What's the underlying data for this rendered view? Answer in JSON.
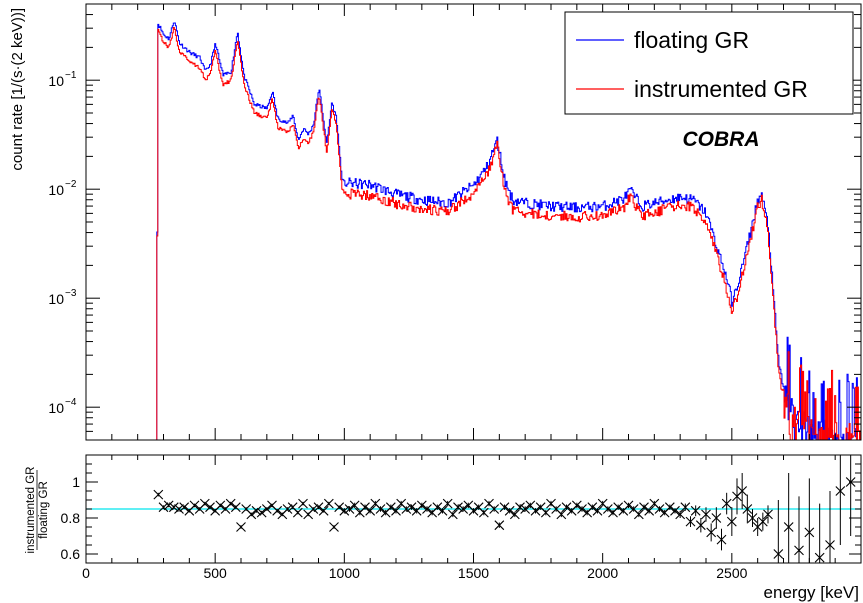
{
  "chart_data": [
    {
      "type": "line",
      "ylabel": "count rate [1/(s·(2 keV))]",
      "yscale": "log",
      "xlim": [
        0,
        3000
      ],
      "ylim": [
        5e-05,
        0.5
      ],
      "y_ticks": [
        {
          "value": 0.1,
          "base": "10",
          "exp": "−1"
        },
        {
          "value": 0.01,
          "base": "10",
          "exp": "−2"
        },
        {
          "value": 0.001,
          "base": "10",
          "exp": "−3"
        },
        {
          "value": 0.0001,
          "base": "10",
          "exp": "−4"
        }
      ],
      "legend": {
        "placement": "top-right"
      },
      "annotation": "COBRA",
      "x": [
        270,
        278,
        300,
        320,
        340,
        360,
        400,
        440,
        460,
        480,
        500,
        515,
        530,
        560,
        585,
        610,
        650,
        700,
        720,
        740,
        780,
        800,
        820,
        840,
        860,
        880,
        900,
        912,
        930,
        950,
        968,
        990,
        1000,
        1100,
        1200,
        1300,
        1400,
        1500,
        1550,
        1590,
        1620,
        1650,
        1700,
        1800,
        1900,
        2000,
        2080,
        2105,
        2150,
        2200,
        2300,
        2350,
        2400,
        2450,
        2480,
        2500,
        2530,
        2570,
        2600,
        2614,
        2640,
        2660,
        2680,
        2700,
        2720,
        2750,
        2800,
        2900,
        3000
      ],
      "series": [
        {
          "name": "floating GR",
          "color": "#0000ff",
          "values": [
            5e-05,
            0.33,
            0.26,
            0.24,
            0.36,
            0.22,
            0.18,
            0.16,
            0.12,
            0.14,
            0.22,
            0.15,
            0.11,
            0.12,
            0.28,
            0.11,
            0.06,
            0.055,
            0.08,
            0.045,
            0.04,
            0.048,
            0.028,
            0.036,
            0.032,
            0.04,
            0.085,
            0.055,
            0.026,
            0.062,
            0.045,
            0.012,
            0.0115,
            0.011,
            0.009,
            0.008,
            0.0075,
            0.011,
            0.016,
            0.028,
            0.012,
            0.008,
            0.0075,
            0.007,
            0.0068,
            0.007,
            0.0082,
            0.0098,
            0.007,
            0.0075,
            0.0085,
            0.008,
            0.006,
            0.0025,
            0.0015,
            0.0009,
            0.0016,
            0.004,
            0.0082,
            0.0088,
            0.0045,
            0.001,
            0.00025,
            0.00015,
            0.0001,
            7e-05,
            6e-05,
            5e-05,
            5e-05
          ]
        },
        {
          "name": "instrumented GR",
          "color": "#ff0000",
          "values": [
            5e-05,
            0.29,
            0.22,
            0.2,
            0.31,
            0.18,
            0.15,
            0.13,
            0.1,
            0.115,
            0.19,
            0.12,
            0.09,
            0.1,
            0.24,
            0.09,
            0.05,
            0.045,
            0.068,
            0.037,
            0.033,
            0.04,
            0.023,
            0.03,
            0.027,
            0.034,
            0.075,
            0.046,
            0.022,
            0.055,
            0.038,
            0.0098,
            0.0092,
            0.0088,
            0.0074,
            0.0066,
            0.0062,
            0.0092,
            0.0135,
            0.025,
            0.0095,
            0.0066,
            0.006,
            0.0057,
            0.0056,
            0.0058,
            0.0068,
            0.0085,
            0.0058,
            0.0062,
            0.0072,
            0.0068,
            0.005,
            0.0021,
            0.0012,
            0.00075,
            0.0013,
            0.0034,
            0.0072,
            0.008,
            0.0038,
            0.0009,
            0.0002,
            0.00013,
            9e-05,
            7e-05,
            6e-05,
            5e-05,
            5e-05
          ]
        }
      ]
    },
    {
      "type": "scatter",
      "xlabel": "energy [keV]",
      "ylabel_numerator": "instrumented GR",
      "ylabel_denominator": "floating GR",
      "xlim": [
        0,
        3000
      ],
      "ylim": [
        0.55,
        1.15
      ],
      "x_ticks": [
        0,
        500,
        1000,
        1500,
        2000,
        2500
      ],
      "y_ticks": [
        0.6,
        0.8,
        1
      ],
      "reference_line": {
        "value": 0.85,
        "color": "#00e5ee"
      },
      "points": {
        "x": [
          280,
          300,
          320,
          340,
          360,
          380,
          400,
          420,
          440,
          460,
          480,
          500,
          520,
          540,
          560,
          580,
          600,
          620,
          640,
          660,
          680,
          700,
          720,
          740,
          760,
          780,
          800,
          820,
          840,
          860,
          880,
          900,
          920,
          940,
          960,
          980,
          1000,
          1020,
          1040,
          1060,
          1080,
          1100,
          1120,
          1140,
          1160,
          1180,
          1200,
          1220,
          1240,
          1260,
          1280,
          1300,
          1320,
          1340,
          1360,
          1380,
          1400,
          1420,
          1440,
          1460,
          1480,
          1500,
          1520,
          1540,
          1560,
          1580,
          1600,
          1620,
          1640,
          1660,
          1680,
          1700,
          1720,
          1740,
          1760,
          1780,
          1800,
          1820,
          1840,
          1860,
          1880,
          1900,
          1920,
          1940,
          1960,
          1980,
          2000,
          2020,
          2040,
          2060,
          2080,
          2100,
          2120,
          2140,
          2160,
          2180,
          2200,
          2220,
          2240,
          2260,
          2280,
          2300,
          2320,
          2340,
          2360,
          2380,
          2400,
          2420,
          2440,
          2460,
          2480,
          2500,
          2520,
          2540,
          2560,
          2580,
          2600,
          2620,
          2640,
          2680,
          2720,
          2760,
          2800,
          2840,
          2880,
          2920,
          2960
        ],
        "y": [
          0.93,
          0.86,
          0.87,
          0.86,
          0.85,
          0.86,
          0.84,
          0.87,
          0.85,
          0.88,
          0.86,
          0.84,
          0.87,
          0.85,
          0.88,
          0.86,
          0.75,
          0.85,
          0.82,
          0.84,
          0.83,
          0.85,
          0.87,
          0.84,
          0.82,
          0.85,
          0.86,
          0.83,
          0.88,
          0.82,
          0.85,
          0.86,
          0.84,
          0.88,
          0.75,
          0.86,
          0.84,
          0.85,
          0.87,
          0.83,
          0.86,
          0.84,
          0.88,
          0.85,
          0.83,
          0.86,
          0.84,
          0.88,
          0.85,
          0.86,
          0.84,
          0.87,
          0.85,
          0.83,
          0.86,
          0.84,
          0.88,
          0.82,
          0.86,
          0.85,
          0.87,
          0.84,
          0.86,
          0.83,
          0.88,
          0.85,
          0.76,
          0.86,
          0.84,
          0.82,
          0.86,
          0.85,
          0.87,
          0.84,
          0.86,
          0.83,
          0.88,
          0.85,
          0.82,
          0.86,
          0.84,
          0.87,
          0.85,
          0.83,
          0.86,
          0.84,
          0.88,
          0.85,
          0.83,
          0.86,
          0.84,
          0.87,
          0.85,
          0.82,
          0.86,
          0.84,
          0.88,
          0.85,
          0.83,
          0.86,
          0.84,
          0.82,
          0.86,
          0.78,
          0.84,
          0.76,
          0.82,
          0.72,
          0.8,
          0.68,
          0.88,
          0.78,
          0.92,
          0.95,
          0.85,
          0.8,
          0.75,
          0.78,
          0.82,
          0.6,
          0.75,
          0.62,
          0.72,
          0.58,
          0.65,
          0.95,
          1.0
        ],
        "err": [
          0.01,
          0.01,
          0.01,
          0.01,
          0.01,
          0.01,
          0.01,
          0.01,
          0.01,
          0.01,
          0.01,
          0.01,
          0.01,
          0.01,
          0.01,
          0.01,
          0.01,
          0.01,
          0.01,
          0.01,
          0.01,
          0.01,
          0.01,
          0.01,
          0.01,
          0.01,
          0.01,
          0.01,
          0.01,
          0.01,
          0.01,
          0.01,
          0.01,
          0.01,
          0.01,
          0.01,
          0.015,
          0.015,
          0.015,
          0.015,
          0.015,
          0.015,
          0.015,
          0.015,
          0.015,
          0.015,
          0.015,
          0.015,
          0.015,
          0.015,
          0.015,
          0.015,
          0.015,
          0.015,
          0.015,
          0.015,
          0.015,
          0.015,
          0.015,
          0.015,
          0.015,
          0.015,
          0.015,
          0.015,
          0.015,
          0.015,
          0.015,
          0.015,
          0.015,
          0.015,
          0.015,
          0.015,
          0.015,
          0.015,
          0.015,
          0.015,
          0.015,
          0.015,
          0.015,
          0.015,
          0.015,
          0.015,
          0.015,
          0.015,
          0.015,
          0.015,
          0.015,
          0.015,
          0.015,
          0.015,
          0.015,
          0.015,
          0.015,
          0.015,
          0.015,
          0.015,
          0.015,
          0.015,
          0.015,
          0.015,
          0.015,
          0.02,
          0.02,
          0.03,
          0.03,
          0.04,
          0.04,
          0.05,
          0.06,
          0.06,
          0.06,
          0.08,
          0.1,
          0.1,
          0.08,
          0.05,
          0.05,
          0.05,
          0.05,
          0.3,
          0.3,
          0.3,
          0.3,
          0.3,
          0.3,
          0.3,
          0.3
        ]
      }
    }
  ]
}
